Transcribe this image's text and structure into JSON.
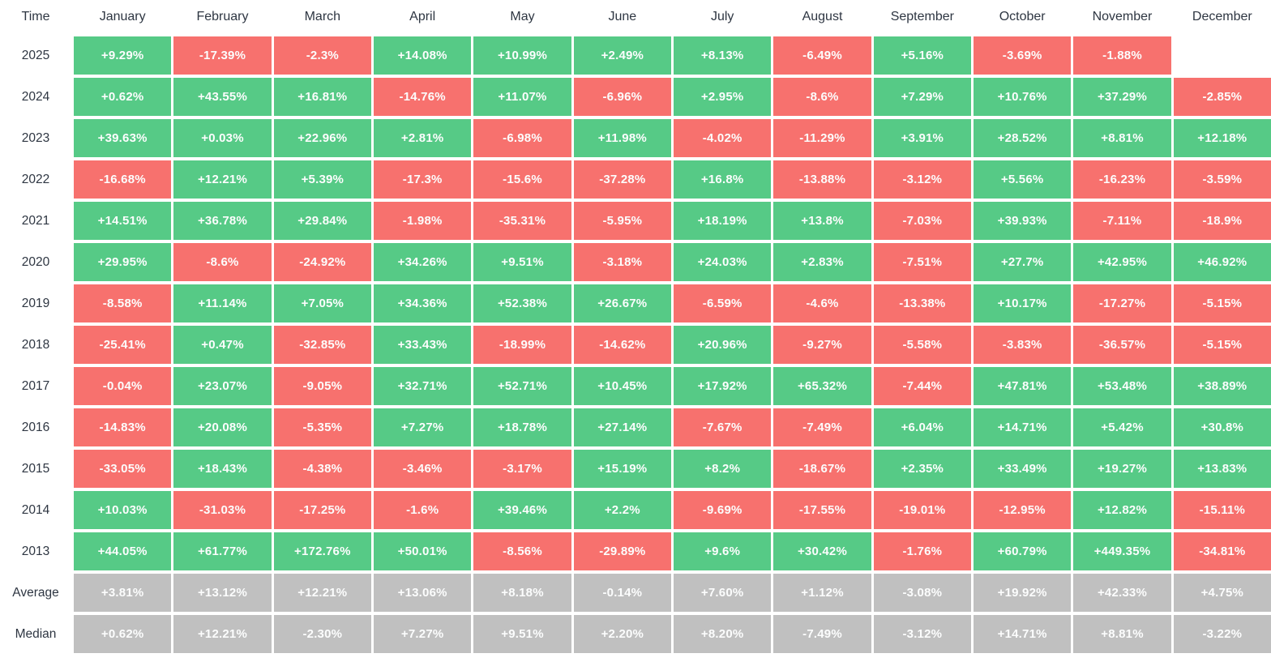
{
  "colors": {
    "positive": "#56ca86",
    "negative": "#f7716e",
    "summary": "#c0c0c0",
    "cell_text": "#fcfdfd",
    "label_text": "#2e3642"
  },
  "chart_data": {
    "type": "heatmap",
    "time_label": "Time",
    "columns": [
      "January",
      "February",
      "March",
      "April",
      "May",
      "June",
      "July",
      "August",
      "September",
      "October",
      "November",
      "December"
    ],
    "rows": [
      {
        "label": "2025",
        "kind": "year",
        "values": [
          "+9.29%",
          "-17.39%",
          "-2.3%",
          "+14.08%",
          "+10.99%",
          "+2.49%",
          "+8.13%",
          "-6.49%",
          "+5.16%",
          "-3.69%",
          "-1.88%",
          null
        ]
      },
      {
        "label": "2024",
        "kind": "year",
        "values": [
          "+0.62%",
          "+43.55%",
          "+16.81%",
          "-14.76%",
          "+11.07%",
          "-6.96%",
          "+2.95%",
          "-8.6%",
          "+7.29%",
          "+10.76%",
          "+37.29%",
          "-2.85%"
        ]
      },
      {
        "label": "2023",
        "kind": "year",
        "values": [
          "+39.63%",
          "+0.03%",
          "+22.96%",
          "+2.81%",
          "-6.98%",
          "+11.98%",
          "-4.02%",
          "-11.29%",
          "+3.91%",
          "+28.52%",
          "+8.81%",
          "+12.18%"
        ]
      },
      {
        "label": "2022",
        "kind": "year",
        "values": [
          "-16.68%",
          "+12.21%",
          "+5.39%",
          "-17.3%",
          "-15.6%",
          "-37.28%",
          "+16.8%",
          "-13.88%",
          "-3.12%",
          "+5.56%",
          "-16.23%",
          "-3.59%"
        ]
      },
      {
        "label": "2021",
        "kind": "year",
        "values": [
          "+14.51%",
          "+36.78%",
          "+29.84%",
          "-1.98%",
          "-35.31%",
          "-5.95%",
          "+18.19%",
          "+13.8%",
          "-7.03%",
          "+39.93%",
          "-7.11%",
          "-18.9%"
        ]
      },
      {
        "label": "2020",
        "kind": "year",
        "values": [
          "+29.95%",
          "-8.6%",
          "-24.92%",
          "+34.26%",
          "+9.51%",
          "-3.18%",
          "+24.03%",
          "+2.83%",
          "-7.51%",
          "+27.7%",
          "+42.95%",
          "+46.92%"
        ]
      },
      {
        "label": "2019",
        "kind": "year",
        "values": [
          "-8.58%",
          "+11.14%",
          "+7.05%",
          "+34.36%",
          "+52.38%",
          "+26.67%",
          "-6.59%",
          "-4.6%",
          "-13.38%",
          "+10.17%",
          "-17.27%",
          "-5.15%"
        ]
      },
      {
        "label": "2018",
        "kind": "year",
        "values": [
          "-25.41%",
          "+0.47%",
          "-32.85%",
          "+33.43%",
          "-18.99%",
          "-14.62%",
          "+20.96%",
          "-9.27%",
          "-5.58%",
          "-3.83%",
          "-36.57%",
          "-5.15%"
        ]
      },
      {
        "label": "2017",
        "kind": "year",
        "values": [
          "-0.04%",
          "+23.07%",
          "-9.05%",
          "+32.71%",
          "+52.71%",
          "+10.45%",
          "+17.92%",
          "+65.32%",
          "-7.44%",
          "+47.81%",
          "+53.48%",
          "+38.89%"
        ]
      },
      {
        "label": "2016",
        "kind": "year",
        "values": [
          "-14.83%",
          "+20.08%",
          "-5.35%",
          "+7.27%",
          "+18.78%",
          "+27.14%",
          "-7.67%",
          "-7.49%",
          "+6.04%",
          "+14.71%",
          "+5.42%",
          "+30.8%"
        ]
      },
      {
        "label": "2015",
        "kind": "year",
        "values": [
          "-33.05%",
          "+18.43%",
          "-4.38%",
          "-3.46%",
          "-3.17%",
          "+15.19%",
          "+8.2%",
          "-18.67%",
          "+2.35%",
          "+33.49%",
          "+19.27%",
          "+13.83%"
        ]
      },
      {
        "label": "2014",
        "kind": "year",
        "values": [
          "+10.03%",
          "-31.03%",
          "-17.25%",
          "-1.6%",
          "+39.46%",
          "+2.2%",
          "-9.69%",
          "-17.55%",
          "-19.01%",
          "-12.95%",
          "+12.82%",
          "-15.11%"
        ]
      },
      {
        "label": "2013",
        "kind": "year",
        "values": [
          "+44.05%",
          "+61.77%",
          "+172.76%",
          "+50.01%",
          "-8.56%",
          "-29.89%",
          "+9.6%",
          "+30.42%",
          "-1.76%",
          "+60.79%",
          "+449.35%",
          "-34.81%"
        ]
      },
      {
        "label": "Average",
        "kind": "summary",
        "values": [
          "+3.81%",
          "+13.12%",
          "+12.21%",
          "+13.06%",
          "+8.18%",
          "-0.14%",
          "+7.60%",
          "+1.12%",
          "-3.08%",
          "+19.92%",
          "+42.33%",
          "+4.75%"
        ]
      },
      {
        "label": "Median",
        "kind": "summary",
        "values": [
          "+0.62%",
          "+12.21%",
          "-2.30%",
          "+7.27%",
          "+9.51%",
          "+2.20%",
          "+8.20%",
          "-7.49%",
          "-3.12%",
          "+14.71%",
          "+8.81%",
          "-3.22%"
        ]
      }
    ],
    "legend": "green = positive monthly return, red = negative monthly return, gray = summary rows",
    "grid": false
  }
}
